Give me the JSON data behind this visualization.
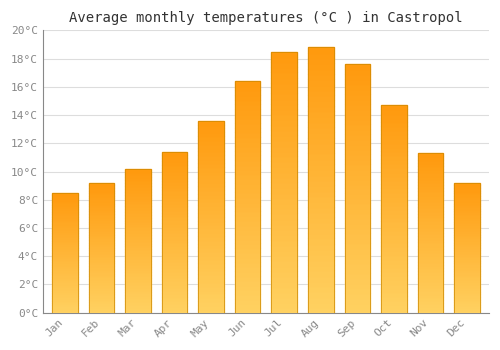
{
  "title": "Average monthly temperatures (°C ) in Castropol",
  "months": [
    "Jan",
    "Feb",
    "Mar",
    "Apr",
    "May",
    "Jun",
    "Jul",
    "Aug",
    "Sep",
    "Oct",
    "Nov",
    "Dec"
  ],
  "values": [
    8.5,
    9.2,
    10.2,
    11.4,
    13.6,
    16.4,
    18.5,
    18.8,
    17.6,
    14.7,
    11.3,
    9.2
  ],
  "bar_color_face": "#FFA500",
  "bar_color_light": "#FFD080",
  "bar_edge_color": "#CC8800",
  "ylim": [
    0,
    20
  ],
  "ytick_step": 2,
  "background_color": "#FFFFFF",
  "plot_bg_color": "#FFFFFF",
  "grid_color": "#DDDDDD",
  "title_fontsize": 10,
  "tick_fontsize": 8,
  "font_family": "monospace",
  "tick_color": "#888888",
  "spine_color": "#888888"
}
